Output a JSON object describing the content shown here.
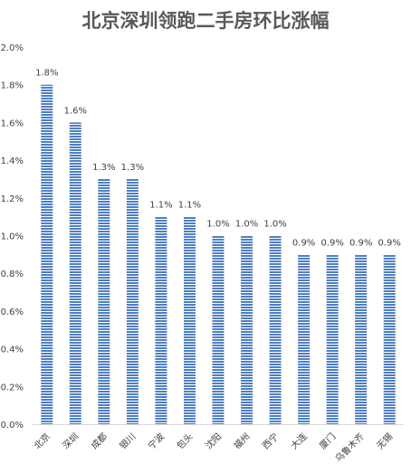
{
  "chart_data": {
    "type": "bar",
    "title": "北京深圳领跑二手房环比涨幅",
    "categories": [
      "北京",
      "深圳",
      "成都",
      "银川",
      "宁波",
      "包头",
      "沈阳",
      "福州",
      "西宁",
      "大连",
      "厦门",
      "乌鲁木齐",
      "无锡"
    ],
    "values": [
      1.8,
      1.6,
      1.3,
      1.3,
      1.1,
      1.1,
      1.0,
      1.0,
      1.0,
      0.9,
      0.9,
      0.9,
      0.9
    ],
    "data_labels": [
      "1.8%",
      "1.6%",
      "1.3%",
      "1.3%",
      "1.1%",
      "1.1%",
      "1.0%",
      "1.0%",
      "1.0%",
      "0.9%",
      "0.9%",
      "0.9%",
      "0.9%"
    ],
    "ylim": [
      0,
      2.0
    ],
    "yticks": [
      0,
      0.2,
      0.4,
      0.6,
      0.8,
      1.0,
      1.2,
      1.4,
      1.6,
      1.8,
      2.0
    ],
    "ytick_labels": [
      "0.0%",
      "0.2%",
      "0.4%",
      "0.6%",
      "0.8%",
      "1.0%",
      "1.2%",
      "1.4%",
      "1.6%",
      "1.8%",
      "2.0%"
    ],
    "xlabel": "",
    "ylabel": "",
    "grid": false,
    "legend": "none",
    "colors": {
      "bar_fill": "#4f7fc1",
      "bar_stripe": "#ffffff",
      "title": "#595959",
      "axis_text": "#404040",
      "axis_line": "#d9d9d9"
    }
  }
}
